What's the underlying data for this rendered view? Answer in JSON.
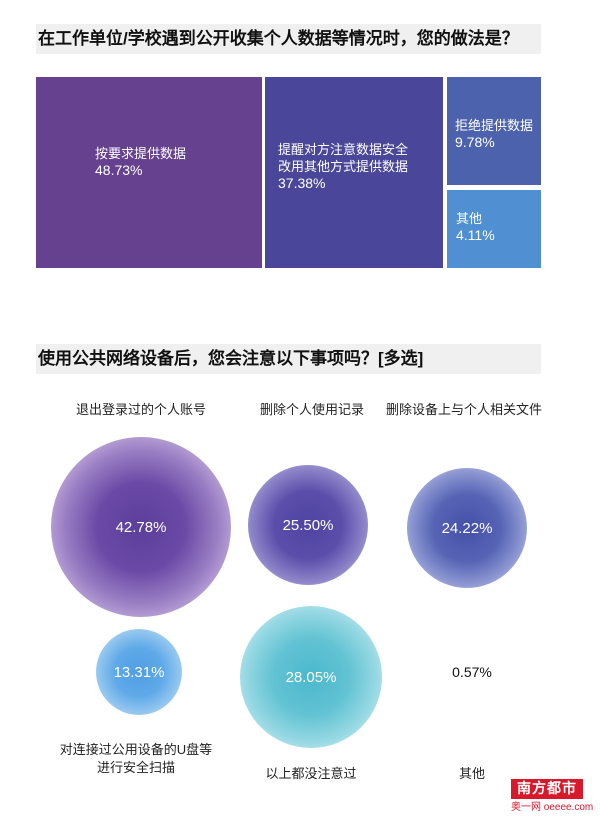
{
  "section1": {
    "title": "在工作单位/学校遇到公开收集个人数据等情况时，您的做法是？",
    "tiles": [
      {
        "label": "按要求提供数据",
        "value_text": "48.73%",
        "color": "#65418f"
      },
      {
        "label": "提醒对方注意数据安全\n改用其他方式提供数据",
        "value_text": "37.38%",
        "color": "#4a479a"
      },
      {
        "label": "拒绝提供数据",
        "value_text": "9.78%",
        "color": "#4d62ad"
      },
      {
        "label": "其他",
        "value_text": "4.11%",
        "color": "#4f8fd2"
      }
    ]
  },
  "section2": {
    "title": "使用公共网络设备后，您会注意以下事项吗？[多选]",
    "bubbles": [
      {
        "label": "退出登录过的个人账号",
        "value_text": "42.78%"
      },
      {
        "label": "删除个人使用记录",
        "value_text": "25.50%"
      },
      {
        "label": "删除设备上与个人相关文件",
        "value_text": "24.22%"
      },
      {
        "label": "对连接过公用设备的U盘等\n进行安全扫描",
        "value_text": "13.31%"
      },
      {
        "label": "以上都没注意过",
        "value_text": "28.05%"
      },
      {
        "label": "其他",
        "value_text": "0.57%"
      }
    ]
  },
  "chart_data": [
    {
      "type": "treemap",
      "title": "在工作单位/学校遇到公开收集个人数据等情况时，您的做法是？",
      "categories": [
        "按要求提供数据",
        "提醒对方注意数据安全改用其他方式提供数据",
        "拒绝提供数据",
        "其他"
      ],
      "values": [
        48.73,
        37.38,
        9.78,
        4.11
      ],
      "unit": "%"
    },
    {
      "type": "bubble",
      "title": "使用公共网络设备后，您会注意以下事项吗？[多选]",
      "categories": [
        "退出登录过的个人账号",
        "删除个人使用记录",
        "删除设备上与个人相关文件",
        "对连接过公用设备的U盘等进行安全扫描",
        "以上都没注意过",
        "其他"
      ],
      "values": [
        42.78,
        25.5,
        24.22,
        13.31,
        28.05,
        0.57
      ],
      "unit": "%"
    }
  ],
  "footer": {
    "logo_text": "南方都市報",
    "logo_sub": "奥一网 oeeee.com"
  }
}
